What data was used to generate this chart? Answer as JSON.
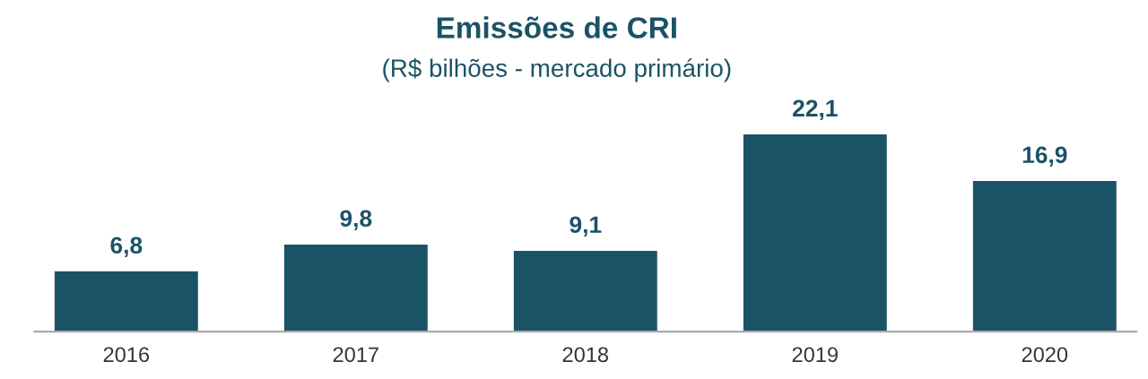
{
  "chart_data": {
    "type": "bar",
    "title": "Emissões de CRI",
    "subtitle": "(R$ bilhões - mercado primário)",
    "categories": [
      "2016",
      "2017",
      "2018",
      "2019",
      "2020"
    ],
    "values": [
      6.8,
      9.8,
      9.1,
      22.1,
      16.9
    ],
    "value_labels": [
      "6,8",
      "9,8",
      "9,1",
      "22,1",
      "16,9"
    ],
    "color": "#1b5366",
    "grid": false,
    "legend": false,
    "tick_labels": "x"
  }
}
